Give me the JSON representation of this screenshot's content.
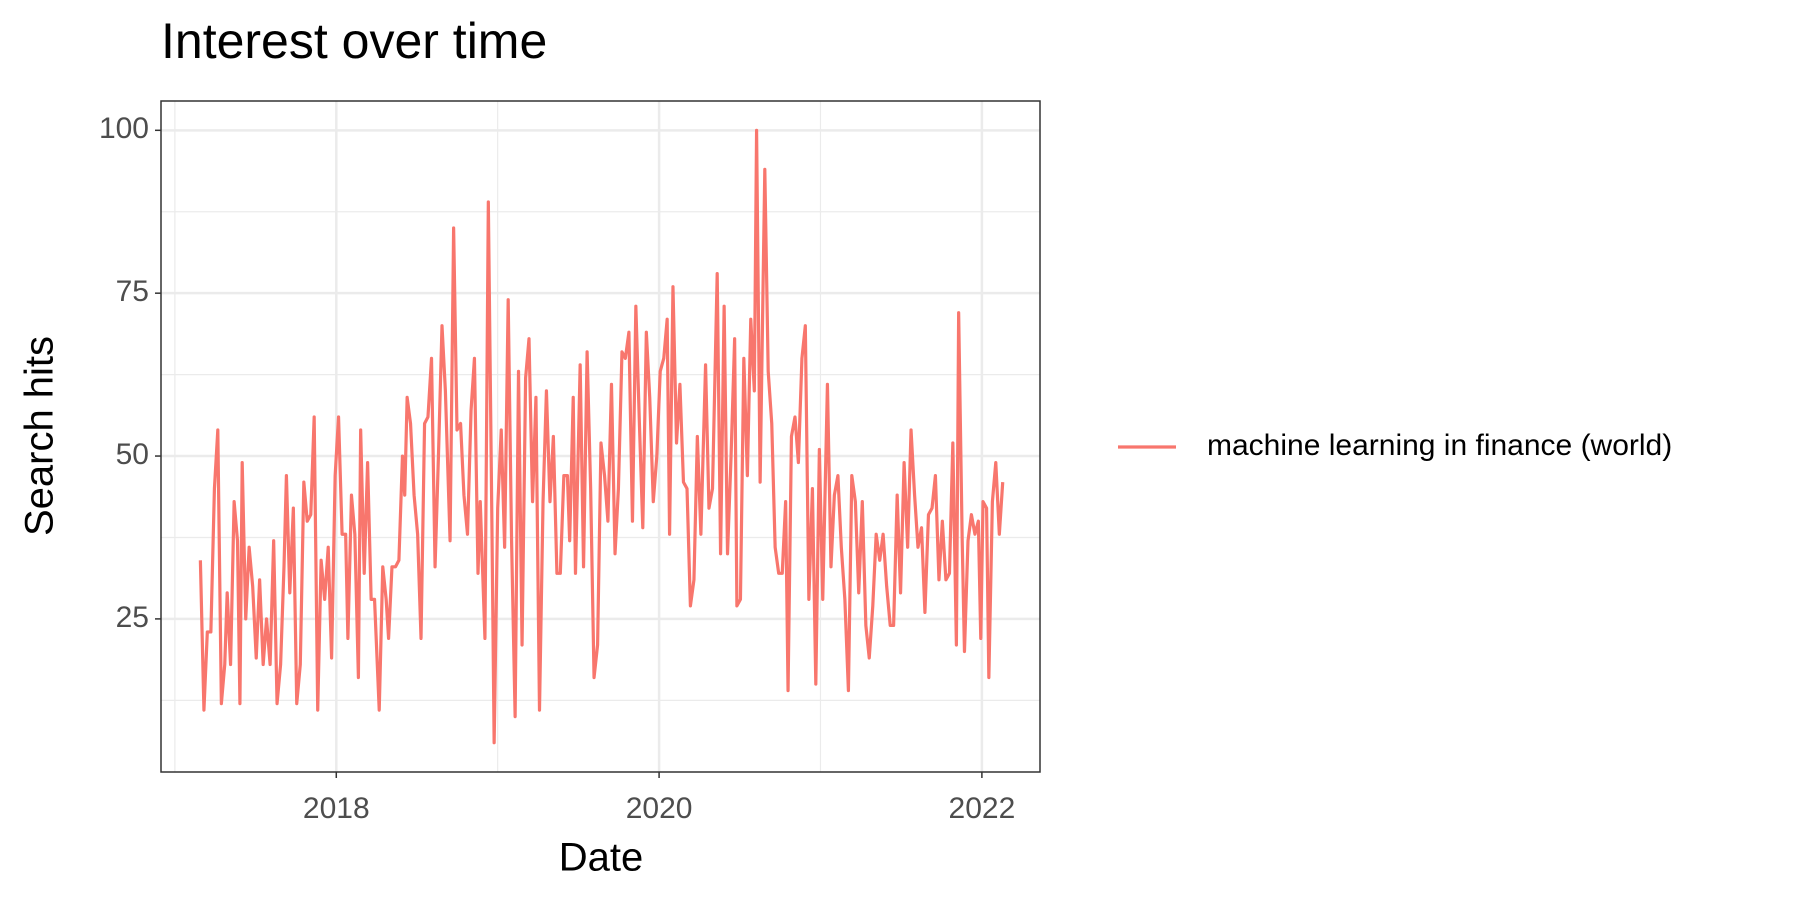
{
  "chart_data": {
    "type": "line",
    "title": "Interest over time",
    "x_label": "Date",
    "y_label": "Search hits",
    "x": [
      2017.158,
      2017.18,
      2017.201,
      2017.223,
      2017.245,
      2017.266,
      2017.288,
      2017.309,
      2017.324,
      2017.345,
      2017.367,
      2017.388,
      2017.403,
      2017.417,
      2017.439,
      2017.46,
      2017.482,
      2017.504,
      2017.525,
      2017.547,
      2017.568,
      2017.59,
      2017.612,
      2017.633,
      2017.655,
      2017.676,
      2017.691,
      2017.712,
      2017.734,
      2017.755,
      2017.777,
      2017.799,
      2017.82,
      2017.842,
      2017.863,
      2017.885,
      2017.906,
      2017.928,
      2017.95,
      2017.971,
      2017.993,
      2018.014,
      2018.036,
      2018.058,
      2018.072,
      2018.094,
      2018.115,
      2018.137,
      2018.151,
      2018.173,
      2018.194,
      2018.216,
      2018.237,
      2018.266,
      2018.288,
      2018.309,
      2018.324,
      2018.345,
      2018.367,
      2018.388,
      2018.41,
      2018.424,
      2018.439,
      2018.46,
      2018.482,
      2018.504,
      2018.525,
      2018.547,
      2018.568,
      2018.59,
      2018.612,
      2018.633,
      2018.655,
      2018.676,
      2018.705,
      2018.727,
      2018.748,
      2018.77,
      2018.791,
      2018.813,
      2018.835,
      2018.856,
      2018.878,
      2018.892,
      2018.921,
      2018.942,
      2018.964,
      2018.978,
      2019.0,
      2019.022,
      2019.043,
      2019.065,
      2019.086,
      2019.108,
      2019.129,
      2019.151,
      2019.173,
      2019.194,
      2019.216,
      2019.237,
      2019.259,
      2019.281,
      2019.302,
      2019.324,
      2019.345,
      2019.367,
      2019.388,
      2019.41,
      2019.432,
      2019.446,
      2019.468,
      2019.482,
      2019.511,
      2019.532,
      2019.554,
      2019.576,
      2019.597,
      2019.619,
      2019.64,
      2019.662,
      2019.683,
      2019.705,
      2019.727,
      2019.748,
      2019.77,
      2019.791,
      2019.813,
      2019.835,
      2019.856,
      2019.878,
      2019.899,
      2019.921,
      2019.942,
      2019.964,
      2019.986,
      2020.007,
      2020.029,
      2020.05,
      2020.065,
      2020.086,
      2020.108,
      2020.129,
      2020.151,
      2020.173,
      2020.194,
      2020.216,
      2020.237,
      2020.259,
      2020.288,
      2020.309,
      2020.331,
      2020.36,
      2020.381,
      2020.403,
      2020.424,
      2020.446,
      2020.468,
      2020.482,
      2020.504,
      2020.525,
      2020.547,
      2020.568,
      2020.59,
      2020.604,
      2020.626,
      2020.655,
      2020.676,
      2020.698,
      2020.719,
      2020.741,
      2020.763,
      2020.784,
      2020.799,
      2020.82,
      2020.842,
      2020.863,
      2020.885,
      2020.906,
      2020.928,
      2020.95,
      2020.971,
      2020.993,
      2021.014,
      2021.043,
      2021.065,
      2021.086,
      2021.108,
      2021.129,
      2021.151,
      2021.173,
      2021.194,
      2021.216,
      2021.237,
      2021.259,
      2021.281,
      2021.302,
      2021.324,
      2021.345,
      2021.367,
      2021.388,
      2021.41,
      2021.432,
      2021.453,
      2021.475,
      2021.496,
      2021.518,
      2021.54,
      2021.561,
      2021.583,
      2021.604,
      2021.626,
      2021.647,
      2021.669,
      2021.691,
      2021.712,
      2021.734,
      2021.755,
      2021.777,
      2021.799,
      2021.82,
      2021.842,
      2021.856,
      2021.878,
      2021.892,
      2021.914,
      2021.935,
      2021.957,
      2021.978,
      2021.993,
      2022.007,
      2022.029,
      2022.043,
      2022.065,
      2022.086,
      2022.108,
      2022.129
    ],
    "series": [
      {
        "name": "machine learning in finance (world)",
        "color": "#F8766D",
        "values": [
          34,
          11,
          23,
          23,
          45,
          54,
          12,
          18,
          29,
          18,
          43,
          37,
          12,
          49,
          25,
          36,
          30,
          19,
          31,
          18,
          25,
          18,
          37,
          12,
          18,
          33,
          47,
          29,
          42,
          12,
          18,
          46,
          40,
          41,
          56,
          11,
          34,
          28,
          36,
          19,
          47,
          56,
          38,
          38,
          22,
          44,
          38,
          16,
          54,
          32,
          49,
          28,
          28,
          11,
          33,
          28,
          22,
          33,
          33,
          34,
          50,
          44,
          59,
          55,
          44,
          38,
          22,
          55,
          56,
          65,
          33,
          50,
          70,
          60,
          37,
          85,
          54,
          55,
          44,
          38,
          57,
          65,
          32,
          43,
          22,
          89,
          40,
          6,
          42,
          54,
          36,
          74,
          37,
          10,
          63,
          21,
          62,
          68,
          43,
          59,
          11,
          43,
          60,
          43,
          53,
          32,
          32,
          47,
          47,
          37,
          59,
          32,
          64,
          33,
          66,
          45,
          16,
          21,
          52,
          47,
          40,
          61,
          35,
          45,
          66,
          65,
          69,
          40,
          73,
          55,
          39,
          69,
          59,
          43,
          50,
          63,
          65,
          71,
          38,
          76,
          52,
          61,
          46,
          45,
          27,
          31,
          53,
          38,
          64,
          42,
          45,
          78,
          35,
          73,
          35,
          50,
          68,
          27,
          28,
          65,
          47,
          71,
          60,
          100,
          46,
          94,
          63,
          55,
          36,
          32,
          32,
          43,
          14,
          53,
          56,
          49,
          65,
          70,
          28,
          45,
          15,
          51,
          28,
          61,
          33,
          44,
          47,
          36,
          28,
          14,
          47,
          43,
          29,
          43,
          24,
          19,
          27,
          38,
          34,
          38,
          30,
          24,
          24,
          44,
          29,
          49,
          36,
          54,
          44,
          36,
          39,
          26,
          41,
          42,
          47,
          31,
          40,
          31,
          32,
          52,
          21,
          72,
          37,
          20,
          37,
          41,
          38,
          40,
          22,
          43,
          42,
          16,
          43,
          49,
          38,
          46
        ]
      }
    ],
    "xlim": [
      2016.914,
      2022.36
    ],
    "xticks": [
      2018,
      2020,
      2022
    ],
    "ylim": [
      1.5,
      104.5
    ],
    "yticks": [
      25,
      50,
      75,
      100
    ],
    "grid": true,
    "legend": "right"
  }
}
